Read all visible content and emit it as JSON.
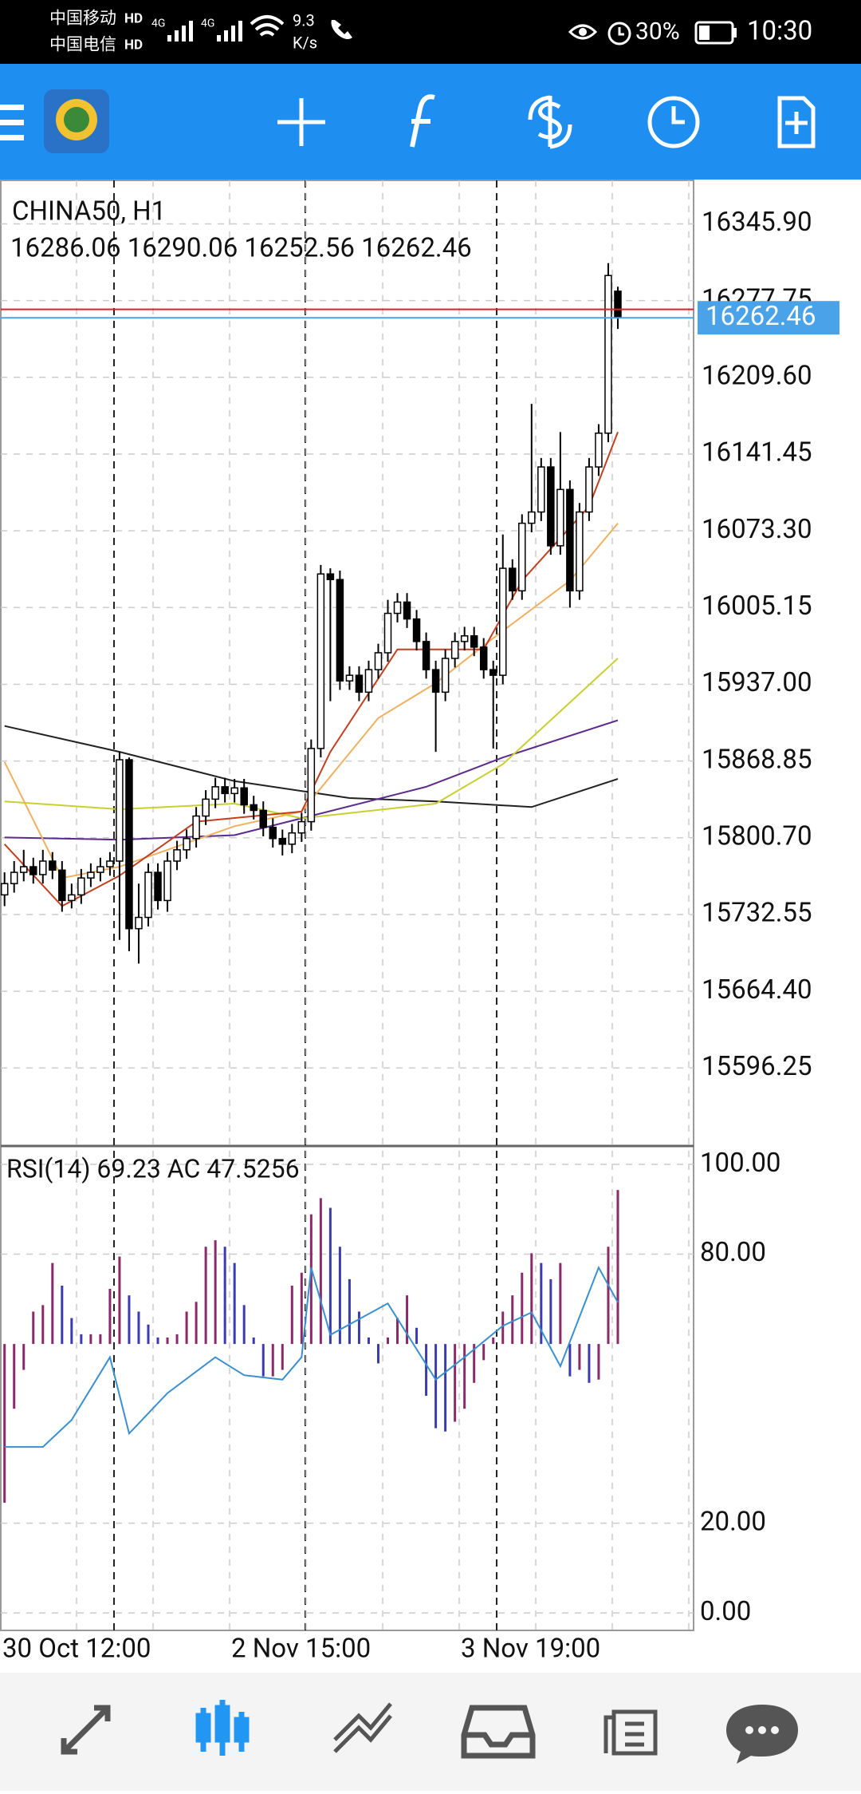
{
  "status_bar": {
    "carrier1": "中国移动",
    "hd1": "HD",
    "carrier2": "中国电信",
    "hd2": "HD",
    "network1": "4G",
    "network2": "4G",
    "speed": "9.3",
    "speed_unit": "K/s",
    "battery": "30%",
    "time": "10:30"
  },
  "chart_data": {
    "type": "candlestick",
    "symbol": "CHINA50, H1",
    "ohlc_text": "16286.06 16290.06 16252.56 16262.46",
    "open": [
      15750,
      15760,
      15770,
      15775,
      15768,
      15780,
      15772,
      15745,
      15750,
      15765,
      15770,
      15775,
      15780,
      15870,
      15720,
      15730,
      15770,
      15745,
      15780,
      15790,
      15800,
      15820,
      15835,
      15846,
      15840,
      15845,
      15830,
      15825,
      15810,
      15800,
      15795,
      15805,
      15815,
      15880,
      16035,
      16030,
      15940,
      15945,
      15930,
      15950,
      15965,
      16000,
      16010,
      15995,
      15975,
      15950,
      15930,
      15960,
      15975,
      15980,
      15970,
      15950,
      15945,
      16040,
      16020,
      16080,
      16090,
      16130,
      16060,
      16110,
      16020,
      16090,
      16130,
      16160,
      16286.06
    ],
    "high": [
      15770,
      15780,
      15790,
      15783,
      15790,
      15788,
      15780,
      15760,
      15773,
      15778,
      15783,
      15788,
      15877,
      15872,
      15760,
      15778,
      15778,
      15788,
      15798,
      15808,
      15828,
      15843,
      15854,
      15854,
      15853,
      15853,
      15838,
      15833,
      15818,
      15808,
      15813,
      15823,
      15888,
      16043,
      16040,
      16038,
      15953,
      15953,
      15958,
      15973,
      16012,
      16018,
      16018,
      16003,
      15983,
      15958,
      15968,
      15983,
      15988,
      15988,
      15978,
      15958,
      16070,
      16048,
      16088,
      16186,
      16138,
      16138,
      16161,
      16118,
      16098,
      16138,
      16168,
      16311,
      16290.06
    ],
    "low": [
      15740,
      15752,
      15762,
      15760,
      15760,
      15764,
      15735,
      15738,
      15742,
      15757,
      15762,
      15767,
      15710,
      15700,
      15689,
      15722,
      15737,
      15735,
      15772,
      15782,
      15792,
      15812,
      15827,
      15832,
      15832,
      15822,
      15817,
      15802,
      15792,
      15785,
      15787,
      15797,
      15807,
      15872,
      15922,
      15932,
      15932,
      15922,
      15922,
      15942,
      15957,
      15992,
      15987,
      15967,
      15942,
      15877,
      15922,
      15952,
      15967,
      15962,
      15942,
      15880,
      15937,
      16012,
      16012,
      16072,
      16082,
      16052,
      16052,
      16005,
      16012,
      16082,
      16122,
      16152,
      16252.56
    ],
    "close": [
      15760,
      15770,
      15775,
      15768,
      15780,
      15772,
      15745,
      15750,
      15765,
      15770,
      15775,
      15780,
      15870,
      15720,
      15730,
      15770,
      15745,
      15780,
      15790,
      15800,
      15820,
      15835,
      15846,
      15840,
      15845,
      15830,
      15825,
      15810,
      15800,
      15795,
      15805,
      15815,
      15880,
      16035,
      16030,
      15940,
      15945,
      15930,
      15950,
      15965,
      16000,
      16010,
      15995,
      15975,
      15950,
      15930,
      15960,
      15975,
      15980,
      15970,
      15950,
      15945,
      16040,
      16020,
      16080,
      16090,
      16130,
      16060,
      16110,
      16020,
      16090,
      16130,
      16160,
      16300,
      16262.46
    ],
    "ylim": [
      15527,
      16384.5
    ],
    "yticks": [
      {
        "value": 16345.9,
        "label": "16345.90"
      },
      16277.75,
      {
        "value": 16209.6,
        "label": "16209.60"
      },
      16141.45,
      {
        "value": 16073.3,
        "label": "16073.30"
      },
      16005.15,
      {
        "value": 15937,
        "label": "15937.00"
      },
      15868.85,
      {
        "value": 15800.7,
        "label": "15800.70"
      },
      15732.55,
      {
        "value": 15664.4,
        "label": "15664.40"
      },
      15596.25
    ],
    "bid": 16262.46,
    "ask": 16270,
    "bid_color": "#4aa3e8",
    "ask_color": "#e02020",
    "moving_averages": [
      {
        "color": "#222222",
        "x": [
          0,
          12,
          24,
          36,
          45,
          55,
          64
        ],
        "values": [
          15900,
          15877,
          15851,
          15836,
          15833,
          15828,
          15853
        ]
      },
      {
        "color": "#5b2a8c",
        "x": [
          0,
          12,
          24,
          31,
          44,
          52,
          64
        ],
        "values": [
          15801,
          15799,
          15803,
          15818,
          15846,
          15872,
          15905
        ]
      },
      {
        "color": "#c8d030",
        "x": [
          0,
          12,
          24,
          31,
          45,
          52,
          64
        ],
        "values": [
          15833,
          15826,
          15831,
          15818,
          15831,
          15866,
          15960
        ]
      },
      {
        "color": "#f0b060",
        "x": [
          0,
          6,
          12,
          24,
          31,
          39,
          45,
          51,
          59,
          64
        ],
        "values": [
          15868,
          15765,
          15775,
          15811,
          15824,
          15907,
          15938,
          15978,
          16029,
          16080
        ]
      },
      {
        "color": "#c04020",
        "x": [
          0,
          6,
          12,
          20,
          31,
          34,
          41,
          50,
          54,
          61,
          64
        ],
        "values": [
          15795,
          15740,
          15767,
          15815,
          15824,
          15877,
          15968,
          15968,
          16029,
          16095,
          16161
        ]
      }
    ],
    "xlabels": [
      "30 Oct 12:00",
      "2 Nov 15:00",
      "3 Nov 19:00"
    ],
    "indicator": {
      "label": "RSI(14) 69.23 AC 47.5256",
      "ylim": [
        -3.9,
        104.1
      ],
      "yticks": [
        {
          "value": 100,
          "label": "100.00"
        },
        {
          "value": 80,
          "label": "80.00"
        },
        {
          "value": 20,
          "label": "20.00"
        },
        {
          "value": 0,
          "label": "0.00"
        }
      ],
      "rsi": {
        "color": "#3a8fd0",
        "x": [
          0,
          4,
          7,
          11,
          13,
          17,
          22,
          25,
          29,
          31,
          32,
          34,
          40,
          45,
          48,
          52,
          55,
          58,
          62,
          64
        ],
        "values": [
          37,
          37,
          43,
          57,
          40,
          49,
          57,
          53,
          52,
          57,
          77,
          62,
          69,
          52,
          57,
          64,
          67,
          55,
          77,
          69.23
        ]
      },
      "ac": {
        "up_color": "#8a2a6a",
        "down_color": "#3b3bb0",
        "ylim": [
          -88.4,
          61.1
        ],
        "values": [
          -49,
          -20,
          -8,
          10,
          12,
          25,
          18,
          8,
          3,
          3,
          3,
          17,
          27,
          15,
          10,
          6,
          2,
          2,
          3,
          10,
          13,
          30,
          32,
          30,
          25,
          12,
          2,
          -10,
          -10,
          -8,
          18,
          22,
          40,
          45,
          42,
          30,
          20,
          10,
          2,
          -6,
          2,
          8,
          15,
          5,
          -16,
          -26,
          -27,
          -24,
          -20,
          -12,
          -5,
          2,
          10,
          15,
          22,
          28,
          25,
          20,
          25,
          -10,
          -8,
          -12,
          -11,
          30,
          47.5256
        ]
      }
    }
  }
}
